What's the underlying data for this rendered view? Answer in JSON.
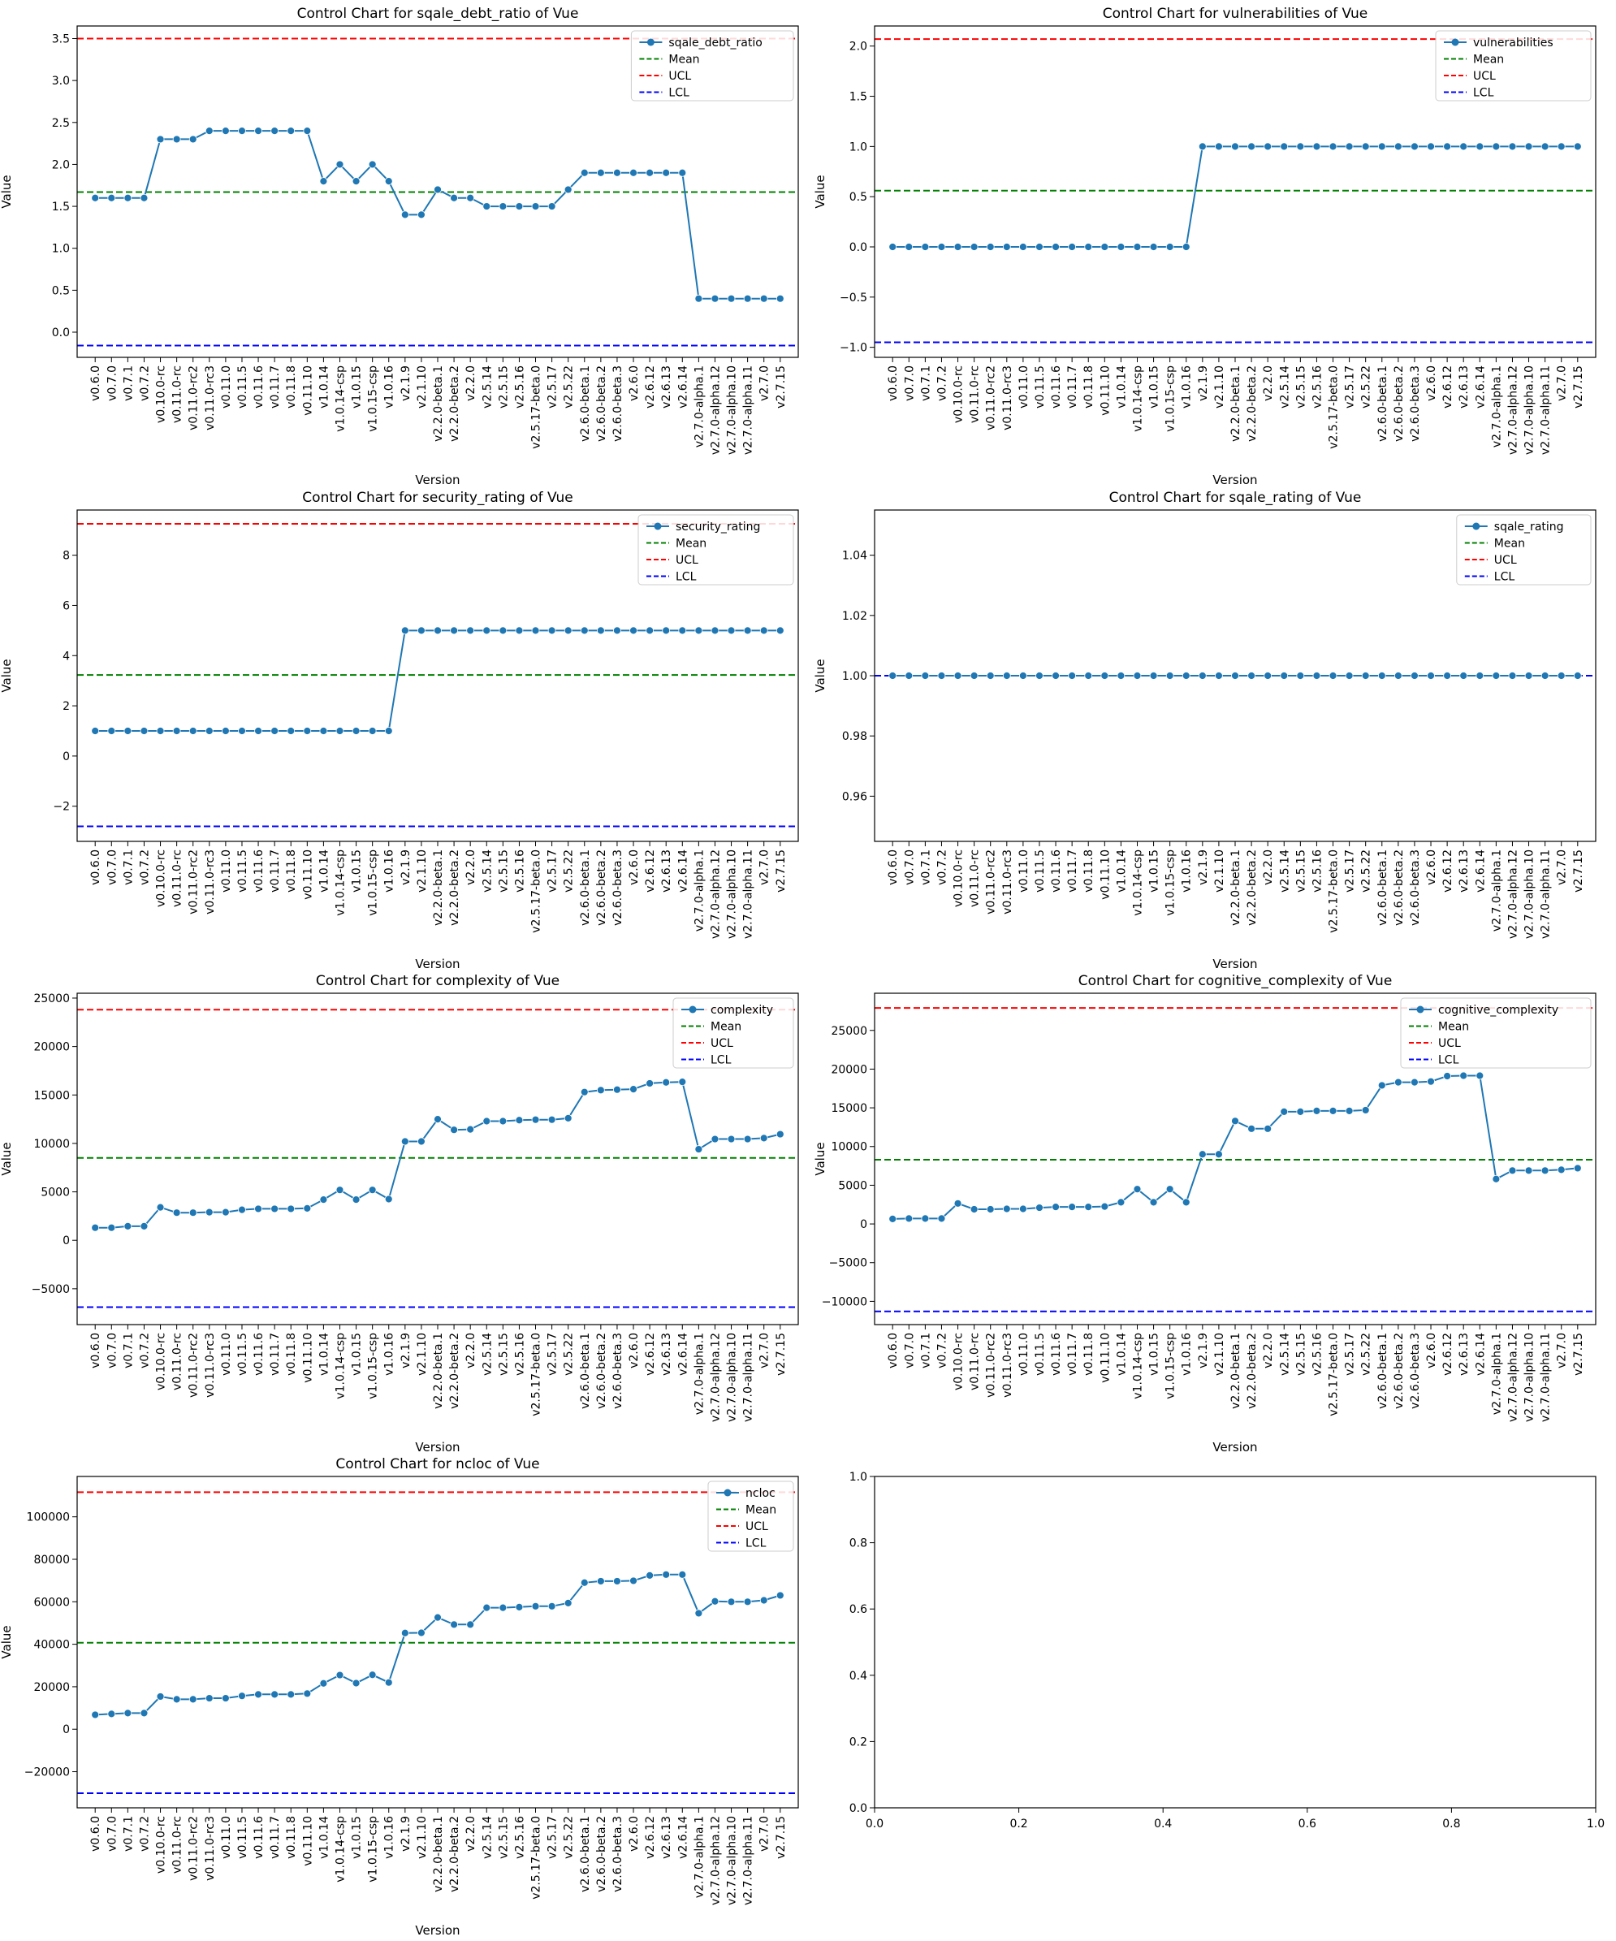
{
  "figure": {
    "versions": [
      "v0.6.0",
      "v0.7.0",
      "v0.7.1",
      "v0.7.2",
      "v0.10.0-rc",
      "v0.11.0-rc",
      "v0.11.0-rc2",
      "v0.11.0-rc3",
      "v0.11.0",
      "v0.11.5",
      "v0.11.6",
      "v0.11.7",
      "v0.11.8",
      "v0.11.10",
      "v1.0.14",
      "v1.0.14-csp",
      "v1.0.15",
      "v1.0.15-csp",
      "v1.0.16",
      "v2.1.9",
      "v2.1.10",
      "v2.2.0-beta.1",
      "v2.2.0-beta.2",
      "v2.2.0",
      "v2.5.14",
      "v2.5.15",
      "v2.5.16",
      "v2.5.17-beta.0",
      "v2.5.17",
      "v2.5.22",
      "v2.6.0-beta.1",
      "v2.6.0-beta.2",
      "v2.6.0-beta.3",
      "v2.6.0",
      "v2.6.12",
      "v2.6.13",
      "v2.6.14",
      "v2.7.0-alpha.1",
      "v2.7.0-alpha.12",
      "v2.7.0-alpha.10",
      "v2.7.0-alpha.11",
      "v2.7.0",
      "v2.7.15"
    ],
    "colors": {
      "series": "#1f77b4",
      "mean": "#008000",
      "ucl": "#ff0000",
      "lcl": "#0000ff",
      "axis": "#000000"
    },
    "legend_labels": {
      "mean": "Mean",
      "ucl": "UCL",
      "lcl": "LCL"
    },
    "empty_axes": {
      "ticks": [
        "0.0",
        "0.2",
        "0.4",
        "0.6",
        "0.8",
        "1.0"
      ]
    }
  },
  "chart_data": [
    {
      "type": "line",
      "title": "Control Chart for sqale_debt_ratio of Vue",
      "xlabel": "Version",
      "ylabel": "Value",
      "series_name": "sqale_debt_ratio",
      "values": [
        1.6,
        1.6,
        1.6,
        1.6,
        2.3,
        2.3,
        2.3,
        2.4,
        2.4,
        2.4,
        2.4,
        2.4,
        2.4,
        2.4,
        1.8,
        2.0,
        1.8,
        2.0,
        1.8,
        1.4,
        1.4,
        1.7,
        1.6,
        1.6,
        1.5,
        1.5,
        1.5,
        1.5,
        1.5,
        1.7,
        1.9,
        1.9,
        1.9,
        1.9,
        1.9,
        1.9,
        1.9,
        0.4,
        0.4,
        0.4,
        0.4,
        0.4,
        0.4
      ],
      "mean": 1.67,
      "ucl": 3.5,
      "lcl": -0.16,
      "ylim": [
        -0.3,
        3.65
      ],
      "yticks": [
        0.0,
        0.5,
        1.0,
        1.5,
        2.0,
        2.5,
        3.0,
        3.5
      ],
      "ytick_labels": [
        "0.0",
        "0.5",
        "1.0",
        "1.5",
        "2.0",
        "2.5",
        "3.0",
        "3.5"
      ],
      "legend": "top-right"
    },
    {
      "type": "line",
      "title": "Control Chart for vulnerabilities of Vue",
      "xlabel": "Version",
      "ylabel": "Value",
      "series_name": "vulnerabilities",
      "values": [
        0,
        0,
        0,
        0,
        0,
        0,
        0,
        0,
        0,
        0,
        0,
        0,
        0,
        0,
        0,
        0,
        0,
        0,
        0,
        1,
        1,
        1,
        1,
        1,
        1,
        1,
        1,
        1,
        1,
        1,
        1,
        1,
        1,
        1,
        1,
        1,
        1,
        1,
        1,
        1,
        1,
        1,
        1
      ],
      "mean": 0.56,
      "ucl": 2.07,
      "lcl": -0.95,
      "ylim": [
        -1.1,
        2.2
      ],
      "yticks": [
        -1.0,
        -0.5,
        0.0,
        0.5,
        1.0,
        1.5,
        2.0
      ],
      "ytick_labels": [
        "−1.0",
        "−0.5",
        "0.0",
        "0.5",
        "1.0",
        "1.5",
        "2.0"
      ],
      "legend": "top-right"
    },
    {
      "type": "line",
      "title": "Control Chart for security_rating of Vue",
      "xlabel": "Version",
      "ylabel": "Value",
      "series_name": "security_rating",
      "values": [
        1,
        1,
        1,
        1,
        1,
        1,
        1,
        1,
        1,
        1,
        1,
        1,
        1,
        1,
        1,
        1,
        1,
        1,
        1,
        5,
        5,
        5,
        5,
        5,
        5,
        5,
        5,
        5,
        5,
        5,
        5,
        5,
        5,
        5,
        5,
        5,
        5,
        5,
        5,
        5,
        5,
        5,
        5
      ],
      "mean": 3.23,
      "ucl": 9.25,
      "lcl": -2.8,
      "ylim": [
        -3.4,
        9.8
      ],
      "yticks": [
        -2,
        0,
        2,
        4,
        6,
        8
      ],
      "ytick_labels": [
        "−2",
        "0",
        "2",
        "4",
        "6",
        "8"
      ],
      "legend": "top-right"
    },
    {
      "type": "line",
      "title": "Control Chart for sqale_rating of Vue",
      "xlabel": "Version",
      "ylabel": "Value",
      "series_name": "sqale_rating",
      "values": [
        1,
        1,
        1,
        1,
        1,
        1,
        1,
        1,
        1,
        1,
        1,
        1,
        1,
        1,
        1,
        1,
        1,
        1,
        1,
        1,
        1,
        1,
        1,
        1,
        1,
        1,
        1,
        1,
        1,
        1,
        1,
        1,
        1,
        1,
        1,
        1,
        1,
        1,
        1,
        1,
        1,
        1,
        1
      ],
      "mean": 1.0,
      "ucl": 1.0,
      "lcl": 1.0,
      "ylim": [
        0.945,
        1.055
      ],
      "yticks": [
        0.96,
        0.98,
        1.0,
        1.02,
        1.04
      ],
      "ytick_labels": [
        "0.96",
        "0.98",
        "1.00",
        "1.02",
        "1.04"
      ],
      "legend": "top-right"
    },
    {
      "type": "line",
      "title": "Control Chart for complexity of Vue",
      "xlabel": "Version",
      "ylabel": "Value",
      "series_name": "complexity",
      "values": [
        1300,
        1300,
        1450,
        1450,
        3400,
        2850,
        2850,
        2900,
        2900,
        3150,
        3250,
        3250,
        3250,
        3300,
        4200,
        5200,
        4200,
        5200,
        4250,
        10200,
        10200,
        12500,
        11400,
        11450,
        12300,
        12300,
        12400,
        12450,
        12450,
        12600,
        15300,
        15500,
        15550,
        15600,
        16200,
        16300,
        16350,
        9400,
        10450,
        10450,
        10450,
        10550,
        10950
      ],
      "mean": 8500,
      "ucl": 23800,
      "lcl": -6900,
      "ylim": [
        -8700,
        25500
      ],
      "yticks": [
        -5000,
        0,
        5000,
        10000,
        15000,
        20000,
        25000
      ],
      "ytick_labels": [
        "−5000",
        "0",
        "5000",
        "10000",
        "15000",
        "20000",
        "25000"
      ],
      "legend": "top-right"
    },
    {
      "type": "line",
      "title": "Control Chart for cognitive_complexity of Vue",
      "xlabel": "Version",
      "ylabel": "Value",
      "series_name": "cognitive_complexity",
      "values": [
        650,
        700,
        700,
        700,
        2650,
        1900,
        1900,
        1950,
        1950,
        2100,
        2200,
        2200,
        2200,
        2250,
        2800,
        4500,
        2800,
        4500,
        2800,
        9000,
        9000,
        13300,
        12300,
        12300,
        14500,
        14500,
        14600,
        14600,
        14600,
        14700,
        17900,
        18300,
        18300,
        18400,
        19100,
        19150,
        19150,
        5800,
        6900,
        6900,
        6900,
        7000,
        7200
      ],
      "mean": 8300,
      "ucl": 27900,
      "lcl": -11300,
      "ylim": [
        -13000,
        29800
      ],
      "yticks": [
        -10000,
        -5000,
        0,
        5000,
        10000,
        15000,
        20000,
        25000
      ],
      "ytick_labels": [
        "−10000",
        "−5000",
        "0",
        "5000",
        "10000",
        "15000",
        "20000",
        "25000"
      ],
      "legend": "top-right"
    },
    {
      "type": "line",
      "title": "Control Chart for ncloc of Vue",
      "xlabel": "Version",
      "ylabel": "Value",
      "series_name": "ncloc",
      "values": [
        6800,
        7200,
        7600,
        7600,
        15400,
        14100,
        14100,
        14600,
        14600,
        15700,
        16400,
        16400,
        16400,
        16800,
        21600,
        25500,
        21700,
        25600,
        22000,
        45300,
        45400,
        52600,
        49300,
        49300,
        57200,
        57200,
        57500,
        57900,
        57900,
        59400,
        69000,
        69700,
        69700,
        69900,
        72400,
        72800,
        72800,
        54600,
        60200,
        60000,
        60000,
        60700,
        63000
      ],
      "mean": 40700,
      "ucl": 111600,
      "lcl": -30100,
      "ylim": [
        -37000,
        119000
      ],
      "yticks": [
        -20000,
        0,
        20000,
        40000,
        60000,
        80000,
        100000
      ],
      "ytick_labels": [
        "−20000",
        "0",
        "20000",
        "40000",
        "60000",
        "80000",
        "100000"
      ],
      "legend": "top-right"
    }
  ]
}
